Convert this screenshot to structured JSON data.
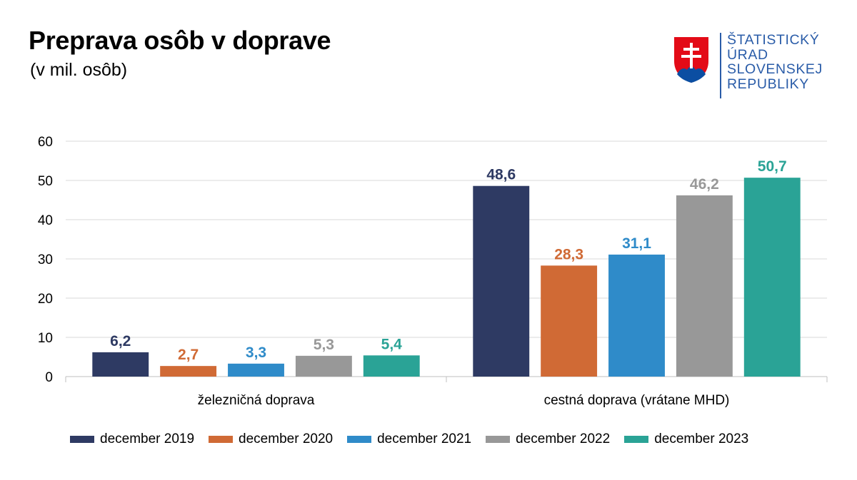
{
  "logo": {
    "lines": [
      "ŠTATISTICKÝ",
      "ÚRAD",
      "SLOVENSKEJ",
      "REPUBLIKY"
    ],
    "text_color": "#2a5ca8"
  },
  "chart_data": {
    "type": "bar",
    "title": "Preprava osôb v doprave",
    "subtitle": "(v mil. osôb)",
    "categories": [
      "železničná doprava",
      "cestná doprava (vrátane MHD)"
    ],
    "series": [
      {
        "name": "december 2019",
        "color": "#2e3a63",
        "values": [
          6.2,
          48.6
        ],
        "labels": [
          "6,2",
          "48,6"
        ]
      },
      {
        "name": "december 2020",
        "color": "#d06a35",
        "values": [
          2.7,
          28.3
        ],
        "labels": [
          "2,7",
          "28,3"
        ]
      },
      {
        "name": "december 2021",
        "color": "#2f8bc9",
        "values": [
          3.3,
          31.1
        ],
        "labels": [
          "3,3",
          "31,1"
        ]
      },
      {
        "name": "december 2022",
        "color": "#989898",
        "values": [
          5.3,
          46.2
        ],
        "labels": [
          "5,3",
          "46,2"
        ]
      },
      {
        "name": "december 2023",
        "color": "#2aa396",
        "values": [
          5.4,
          50.7
        ],
        "labels": [
          "5,4",
          "50,7"
        ]
      }
    ],
    "ylim": [
      0,
      60
    ],
    "yticks": [
      0,
      10,
      20,
      30,
      40,
      50,
      60
    ],
    "grid": true,
    "legend_position": "bottom"
  }
}
